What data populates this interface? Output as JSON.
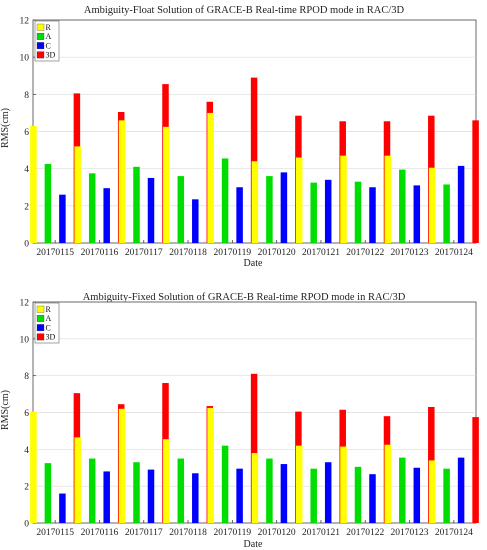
{
  "colors": {
    "R": "#ffff00",
    "A": "#00dd00",
    "C": "#0000ff",
    "3D": "#ff0000"
  },
  "chart_data": [
    {
      "type": "bar",
      "title": "Ambiguity-Float Solution of GRACE-B Real-time RPOD mode in RAC/3D",
      "xlabel": "Date",
      "ylabel": "RMS(cm)",
      "ylim": [
        0,
        12
      ],
      "yticks": [
        0,
        2,
        4,
        6,
        8,
        10,
        12
      ],
      "grid": true,
      "legend": "top-left",
      "categories": [
        "20170115",
        "20170116",
        "20170117",
        "20170118",
        "20170119",
        "20170120",
        "20170121",
        "20170122",
        "20170123",
        "20170124"
      ],
      "series": [
        {
          "name": "R",
          "values": [
            6.3,
            5.2,
            6.6,
            6.25,
            7.0,
            4.4,
            4.6,
            4.7,
            4.7,
            4.05
          ]
        },
        {
          "name": "A",
          "values": [
            4.25,
            3.75,
            4.1,
            3.6,
            4.55,
            3.6,
            3.25,
            3.3,
            3.95,
            3.15
          ]
        },
        {
          "name": "C",
          "values": [
            2.6,
            2.95,
            3.5,
            2.35,
            3.0,
            3.8,
            3.4,
            3.0,
            3.1,
            4.15
          ]
        },
        {
          "name": "3D",
          "values": [
            8.05,
            7.05,
            8.55,
            7.6,
            8.9,
            6.85,
            6.55,
            6.55,
            6.85,
            6.6
          ]
        }
      ]
    },
    {
      "type": "bar",
      "title": "Ambiguity-Fixed Solution of GRACE-B Real-time RPOD mode in RAC/3D",
      "xlabel": "Date",
      "ylabel": "RMS(cm)",
      "ylim": [
        0,
        12
      ],
      "yticks": [
        0,
        2,
        4,
        6,
        8,
        10,
        12
      ],
      "grid": true,
      "legend": "top-left",
      "categories": [
        "20170115",
        "20170116",
        "20170117",
        "20170118",
        "20170119",
        "20170120",
        "20170121",
        "20170122",
        "20170123",
        "20170124"
      ],
      "series": [
        {
          "name": "R",
          "values": [
            6.05,
            4.65,
            6.2,
            4.55,
            6.25,
            3.8,
            4.2,
            4.15,
            4.25,
            3.4
          ]
        },
        {
          "name": "A",
          "values": [
            3.25,
            3.5,
            3.3,
            3.5,
            4.2,
            3.5,
            2.95,
            3.05,
            3.55,
            2.95
          ]
        },
        {
          "name": "C",
          "values": [
            1.6,
            2.8,
            2.9,
            2.7,
            2.95,
            3.2,
            3.3,
            2.65,
            3.0,
            3.55
          ]
        },
        {
          "name": "3D",
          "values": [
            7.05,
            6.45,
            7.6,
            6.35,
            8.1,
            6.05,
            6.15,
            5.8,
            6.3,
            5.75
          ]
        }
      ]
    }
  ]
}
